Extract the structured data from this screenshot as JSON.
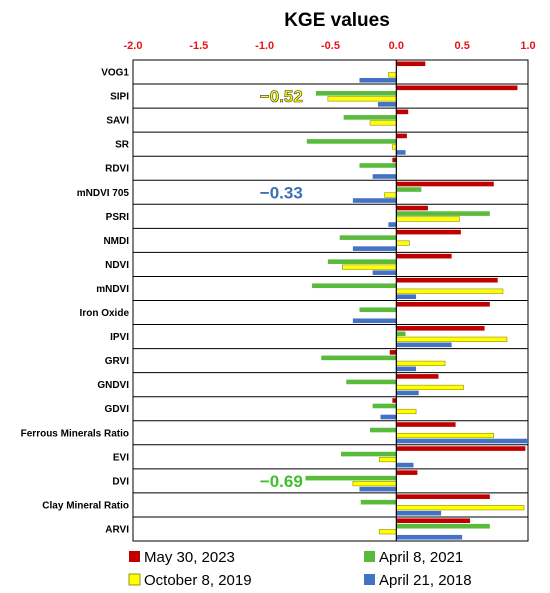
{
  "chart_data": {
    "type": "bar",
    "orientation": "horizontal",
    "title": "KGE values",
    "xlim": [
      -2.0,
      1.0
    ],
    "ticks": [
      "-2.0",
      "-1.5",
      "-1.0",
      "-0.5",
      "0.0",
      "0.5",
      "1.0"
    ],
    "tick_values": [
      -2.0,
      -1.5,
      -1.0,
      -0.5,
      0.0,
      0.5,
      1.0
    ],
    "categories": [
      "VOG1",
      "SIPI",
      "SAVI",
      "SR",
      "RDVI",
      "mNDVI 705",
      "PSRI",
      "NMDI",
      "NDVI",
      "mNDVI",
      "Iron Oxide",
      "IPVI",
      "GRVI",
      "GNDVI",
      "GDVI",
      "Ferrous Minerals Ratio",
      "EVI",
      "DVI",
      "Clay Mineral Ratio",
      "ARVI"
    ],
    "series": [
      {
        "name": "May 30, 2023",
        "color": "#c00000",
        "values": [
          0.22,
          0.92,
          0.09,
          0.08,
          -0.03,
          0.74,
          0.24,
          0.49,
          0.42,
          0.77,
          0.71,
          0.67,
          -0.05,
          0.32,
          -0.03,
          0.45,
          0.98,
          0.16,
          0.71,
          0.56
        ]
      },
      {
        "name": "April 8, 2021",
        "color": "#5aba3c",
        "values": [
          null,
          -0.61,
          -0.4,
          -0.68,
          -0.28,
          0.19,
          0.71,
          -0.43,
          -0.52,
          -0.64,
          -0.28,
          0.07,
          -0.57,
          -0.38,
          -0.18,
          -0.2,
          -0.42,
          -0.69,
          -0.27,
          0.71
        ]
      },
      {
        "name": "October 8, 2019",
        "color": "#ffff00",
        "values": [
          -0.06,
          -0.52,
          -0.2,
          -0.03,
          null,
          -0.09,
          0.48,
          0.1,
          -0.41,
          0.81,
          null,
          0.84,
          0.37,
          0.51,
          0.15,
          0.74,
          -0.13,
          -0.33,
          0.97,
          -0.13
        ]
      },
      {
        "name": "April 21, 2018",
        "color": "#4472c4",
        "values": [
          -0.28,
          -0.14,
          null,
          0.07,
          -0.18,
          -0.33,
          -0.06,
          -0.33,
          -0.18,
          0.15,
          -0.33,
          0.42,
          0.15,
          0.17,
          -0.12,
          1.0,
          0.13,
          -0.28,
          0.34,
          0.5
        ]
      }
    ],
    "annotations": [
      {
        "text": "−0.52",
        "category": "SIPI",
        "color": "#ffff00"
      },
      {
        "text": "−0.33",
        "category": "mNDVI 705",
        "color": "#3d6fb4"
      },
      {
        "text": "−0.69",
        "category": "DVI",
        "color": "#3fbf2f"
      }
    ],
    "grid": false,
    "legend_position": "bottom"
  },
  "legend": {
    "items": [
      {
        "label": "May 30, 2023",
        "color": "#c00000"
      },
      {
        "label": "April 8, 2021",
        "color": "#5aba3c"
      },
      {
        "label": "October 8, 2019",
        "color": "#ffff00"
      },
      {
        "label": "April 21, 2018",
        "color": "#4472c4"
      }
    ]
  }
}
